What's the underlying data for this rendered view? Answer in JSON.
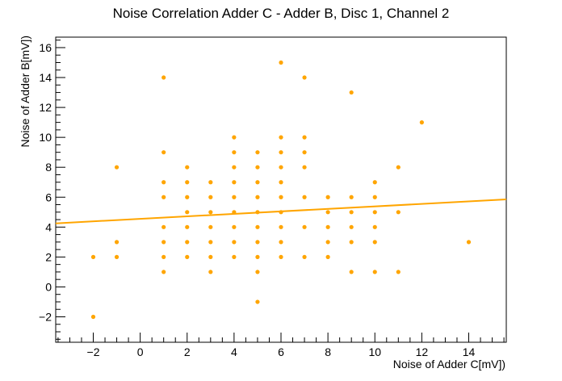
{
  "chart_data": {
    "type": "scatter",
    "title": "Noise Correlation Adder C - Adder B, Disc 1, Channel 2",
    "xlabel": "Noise of Adder C[mV])",
    "ylabel": "Noise of Adder B[mV])",
    "xlim": [
      -3.6,
      15.6
    ],
    "ylim": [
      -3.7,
      16.7
    ],
    "xticks": [
      -2,
      0,
      2,
      4,
      6,
      8,
      10,
      12,
      14
    ],
    "yticks": [
      -2,
      0,
      2,
      4,
      6,
      8,
      10,
      12,
      14,
      16
    ],
    "grid": false,
    "legend": "none",
    "marker_color": "#ffa500",
    "line_color": "#ffa500",
    "points": [
      [
        -2,
        2
      ],
      [
        -2,
        -2
      ],
      [
        -1,
        8
      ],
      [
        -1,
        3
      ],
      [
        -1,
        2
      ],
      [
        1,
        14
      ],
      [
        1,
        9
      ],
      [
        1,
        7
      ],
      [
        1,
        6
      ],
      [
        1,
        4
      ],
      [
        1,
        3
      ],
      [
        1,
        2
      ],
      [
        1,
        1
      ],
      [
        2,
        8
      ],
      [
        2,
        7
      ],
      [
        2,
        6
      ],
      [
        2,
        5
      ],
      [
        2,
        4
      ],
      [
        2,
        3
      ],
      [
        2,
        2
      ],
      [
        3,
        7
      ],
      [
        3,
        6
      ],
      [
        3,
        5
      ],
      [
        3,
        4
      ],
      [
        3,
        3
      ],
      [
        3,
        2
      ],
      [
        3,
        1
      ],
      [
        4,
        10
      ],
      [
        4,
        9
      ],
      [
        4,
        8
      ],
      [
        4,
        7
      ],
      [
        4,
        6
      ],
      [
        4,
        5
      ],
      [
        4,
        4
      ],
      [
        4,
        3
      ],
      [
        4,
        2
      ],
      [
        5,
        9
      ],
      [
        5,
        8
      ],
      [
        5,
        7
      ],
      [
        5,
        6
      ],
      [
        5,
        5
      ],
      [
        5,
        4
      ],
      [
        5,
        3
      ],
      [
        5,
        2
      ],
      [
        5,
        1
      ],
      [
        5,
        -1
      ],
      [
        6,
        15
      ],
      [
        6,
        10
      ],
      [
        6,
        9
      ],
      [
        6,
        8
      ],
      [
        6,
        7
      ],
      [
        6,
        6
      ],
      [
        6,
        5
      ],
      [
        6,
        4
      ],
      [
        6,
        3
      ],
      [
        6,
        2
      ],
      [
        7,
        14
      ],
      [
        7,
        10
      ],
      [
        7,
        9
      ],
      [
        7,
        8
      ],
      [
        7,
        6
      ],
      [
        7,
        4
      ],
      [
        7,
        2
      ],
      [
        8,
        6
      ],
      [
        8,
        5
      ],
      [
        8,
        4
      ],
      [
        8,
        3
      ],
      [
        8,
        2
      ],
      [
        9,
        13
      ],
      [
        9,
        6
      ],
      [
        9,
        5
      ],
      [
        9,
        4
      ],
      [
        9,
        3
      ],
      [
        9,
        1
      ],
      [
        10,
        7
      ],
      [
        10,
        6
      ],
      [
        10,
        5
      ],
      [
        10,
        4
      ],
      [
        10,
        3
      ],
      [
        10,
        1
      ],
      [
        11,
        8
      ],
      [
        11,
        5
      ],
      [
        11,
        1
      ],
      [
        12,
        11
      ],
      [
        14,
        3
      ]
    ],
    "fit_line": {
      "x": [
        -3.6,
        15.6
      ],
      "y": [
        4.25,
        5.85
      ]
    }
  }
}
